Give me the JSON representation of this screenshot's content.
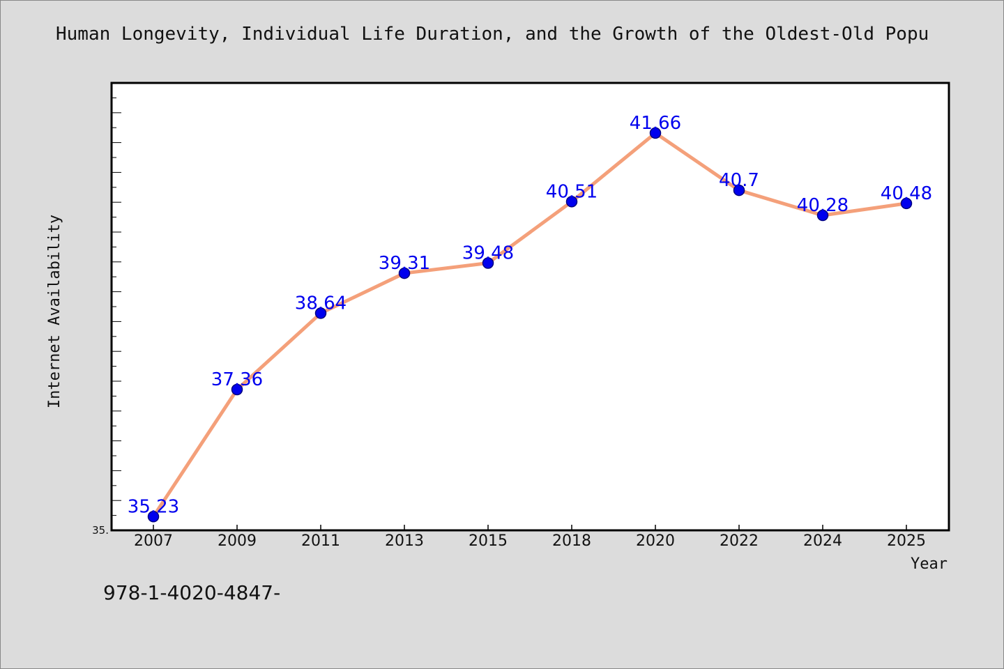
{
  "chart_data": {
    "type": "line",
    "title": "Human Longevity, Individual Life Duration, and the Growth of the Oldest-Old Popu",
    "xlabel": "Year",
    "ylabel": "Internet Availability",
    "categories": [
      "2007",
      "2009",
      "2011",
      "2013",
      "2015",
      "2018",
      "2020",
      "2022",
      "2024",
      "2025"
    ],
    "series": [
      {
        "values": [
          35.23,
          37.36,
          38.64,
          39.31,
          39.48,
          40.51,
          41.66,
          40.7,
          40.28,
          40.48
        ],
        "labels": [
          "35.23",
          "37.36",
          "38.64",
          "39.31",
          "39.48",
          "40.51",
          "41.66",
          "40.7",
          "40.28",
          "40.48"
        ]
      }
    ],
    "ylim": [
      35.0,
      42.5
    ],
    "y_min_tick_label": "35.",
    "grid": false,
    "legend": "none",
    "colors": {
      "line": "#f4a07a",
      "marker_fill": "#0000ee",
      "marker_edge": "#000080",
      "data_label": "#0000ee",
      "plot_background": "#ffffff",
      "figure_background": "#dcdcdc"
    }
  },
  "footnote": "978-1-4020-4847-"
}
